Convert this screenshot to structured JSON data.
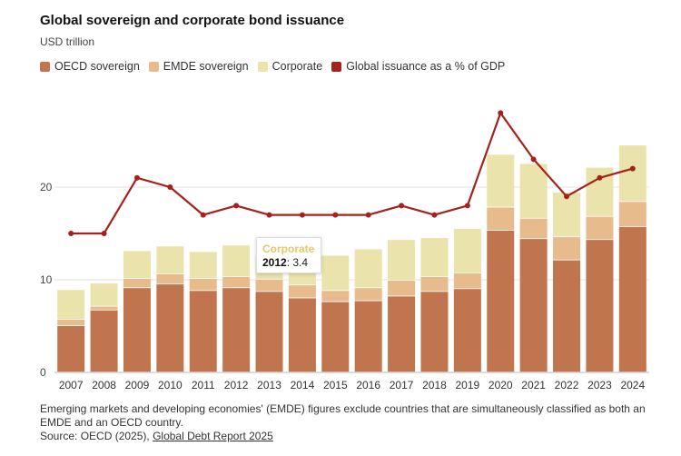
{
  "chart_data": {
    "type": "bar",
    "stacked": true,
    "title": "Global sovereign and corporate bond issuance",
    "subtitle": "USD trillion",
    "categories": [
      "2007",
      "2008",
      "2009",
      "2010",
      "2011",
      "2012",
      "2013",
      "2014",
      "2015",
      "2016",
      "2017",
      "2018",
      "2019",
      "2020",
      "2021",
      "2022",
      "2023",
      "2024"
    ],
    "series": [
      {
        "name": "OECD sovereign",
        "color": "#c0754f",
        "values": [
          5.0,
          6.7,
          9.1,
          9.5,
          8.8,
          9.1,
          8.7,
          8.0,
          7.6,
          7.7,
          8.2,
          8.7,
          9.0,
          15.3,
          14.4,
          12.1,
          14.3,
          15.7
        ]
      },
      {
        "name": "EMDE sovereign",
        "color": "#e8bb8d",
        "values": [
          0.7,
          0.4,
          1.0,
          1.1,
          1.3,
          1.2,
          1.3,
          1.4,
          1.2,
          1.4,
          1.7,
          1.6,
          1.7,
          2.5,
          2.2,
          2.5,
          2.5,
          2.7
        ]
      },
      {
        "name": "Corporate",
        "color": "#ebe3ac",
        "values": [
          3.2,
          2.5,
          3.0,
          3.0,
          2.9,
          3.4,
          2.6,
          2.1,
          3.8,
          4.2,
          4.4,
          4.2,
          4.8,
          5.7,
          5.9,
          4.8,
          5.3,
          6.1
        ]
      }
    ],
    "line_series": {
      "name": "Global issuance as a % of GDP",
      "color": "#a3221e",
      "values": [
        15,
        15,
        21,
        20,
        17,
        18,
        17,
        17,
        17,
        17,
        18,
        17,
        18,
        28,
        23,
        19,
        21,
        22
      ]
    },
    "y_ticks": [
      "0",
      "10",
      "20"
    ],
    "ylim": [
      0,
      30
    ],
    "grid": true,
    "legend_position": "top-left",
    "tooltip": {
      "series": "Corporate",
      "year": "2012",
      "value": ": 3.4"
    }
  },
  "footnote": {
    "line1": "Emerging markets and developing economies' (EMDE) figures exclude countries that are simultaneously classified as both an EMDE and an OECD country.",
    "source_prefix": "Source: OECD (2025), ",
    "source_link": "Global Debt Report 2025"
  }
}
